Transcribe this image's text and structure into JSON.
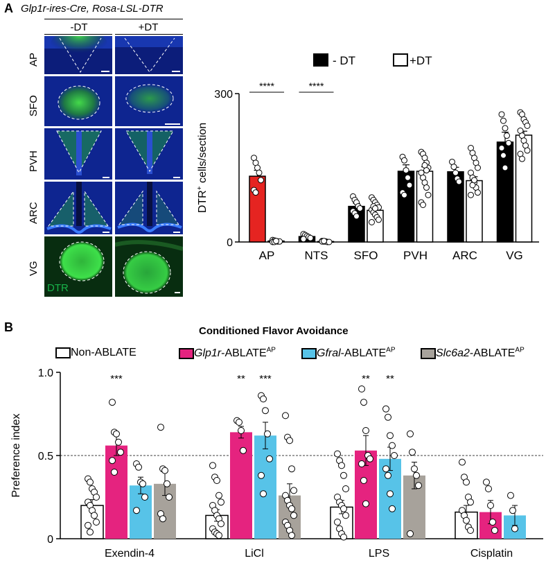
{
  "panelA": {
    "letter": "A",
    "genotype": "Glp1r-ires-Cre, Rosa-LSL-DTR",
    "columns": [
      "-DT",
      "+DT"
    ],
    "rows": [
      "AP",
      "SFO",
      "PVH",
      "ARC",
      "VG"
    ],
    "stain_label": "DTR"
  },
  "panelB": {
    "letter": "B",
    "title": "Conditioned Flavor Avoidance"
  },
  "chart_data": [
    {
      "type": "bar",
      "title": "",
      "xlabel": "",
      "ylabel": "DTR+ cells/section",
      "ylabel_main": "DTR",
      "ylabel_sup": "+",
      "ylabel_rest": " cells/section",
      "ylim": [
        0,
        300
      ],
      "yticks": [
        "0",
        "300"
      ],
      "categories": [
        "AP",
        "NTS",
        "SFO",
        "PVH",
        "ARC",
        "VG"
      ],
      "legend": [
        "- DT",
        "+DT"
      ],
      "series": [
        {
          "name": "- DT",
          "values": [
            133,
            11,
            72,
            143,
            142,
            202
          ],
          "errors": [
            12,
            3,
            6,
            13,
            9,
            20
          ],
          "color": "#000000",
          "ap_color": "#e52421",
          "points": [
            [
              170,
              160,
              150,
              140,
              125,
              105,
              100
            ],
            [
              16,
              14,
              12,
              10,
              8,
              6
            ],
            [
              92,
              85,
              80,
              72,
              68,
              62,
              58,
              52
            ],
            [
              172,
              165,
              145,
              130,
              115,
              100,
              95
            ],
            [
              162,
              152,
              140,
              128,
              122
            ],
            [
              258,
              245,
              230,
              215,
              200,
              190,
              175,
              150
            ]
          ]
        },
        {
          "name": "+DT",
          "values": [
            2,
            1,
            64,
            143,
            124,
            216
          ],
          "errors": [
            1,
            0.5,
            4,
            9,
            8,
            8
          ],
          "color": "#ffffff",
          "points": [
            [
              4,
              3,
              2,
              1,
              1,
              0,
              0,
              2
            ],
            [
              2,
              1,
              1,
              0,
              0,
              1,
              2
            ],
            [
              90,
              85,
              80,
              75,
              70,
              65,
              60,
              55,
              50,
              45,
              40,
              72,
              68
            ],
            [
              182,
              178,
              170,
              160,
              150,
              140,
              130,
              120,
              110,
              95,
              80,
              75,
              155,
              145
            ],
            [
              190,
              180,
              170,
              160,
              150,
              140,
              130,
              120,
              110,
              100,
              95,
              115,
              125
            ],
            [
              262,
              258,
              248,
              242,
              235,
              225,
              215,
              205,
              195,
              185,
              178,
              168
            ]
          ]
        }
      ],
      "annotations": [
        {
          "category": "AP",
          "text": "****"
        },
        {
          "category": "NTS",
          "text": "****"
        }
      ]
    },
    {
      "type": "bar",
      "title": "Conditioned Flavor Avoidance",
      "xlabel": "",
      "ylabel": "Preference index",
      "ylim": [
        0,
        1.0
      ],
      "yticks": [
        "0",
        "0.5",
        "1.0"
      ],
      "reference_line": 0.5,
      "categories": [
        "Exendin-4",
        "LiCl",
        "LPS",
        "Cisplatin"
      ],
      "legend": [
        {
          "italic": "",
          "text": "Non-ABLATE",
          "sup": ""
        },
        {
          "italic": "Glp1r",
          "text": "-ABLATE",
          "sup": "AP"
        },
        {
          "italic": "Gfral",
          "text": "-ABLATE",
          "sup": "AP"
        },
        {
          "italic": "Slc6a2",
          "text": "-ABLATE",
          "sup": "AP"
        }
      ],
      "series": [
        {
          "name": "Non-ABLATE",
          "color": "#ffffff",
          "values": [
            0.2,
            0.14,
            0.19,
            0.16
          ],
          "errors": [
            0.035,
            0.035,
            0.04,
            0.04
          ],
          "points": [
            [
              0.36,
              0.34,
              0.3,
              0.28,
              0.25,
              0.22,
              0.2,
              0.17,
              0.14,
              0.1,
              0.08,
              0.04
            ],
            [
              0.44,
              0.37,
              0.35,
              0.26,
              0.22,
              0.2,
              0.17,
              0.14,
              0.12,
              0.09,
              0.06,
              0.04,
              0.03,
              0.02
            ],
            [
              0.51,
              0.47,
              0.44,
              0.38,
              0.3,
              0.25,
              0.22,
              0.2,
              0.18,
              0.14,
              0.1,
              0.06,
              0.03,
              0.01
            ],
            [
              0.46,
              0.37,
              0.34,
              0.25,
              0.22,
              0.17,
              0.14,
              0.11,
              0.07,
              0.05
            ]
          ]
        },
        {
          "name": "Glp1r-ABLATE AP",
          "color": "#e5237f",
          "values": [
            0.56,
            0.64,
            0.53,
            0.16
          ],
          "errors": [
            0.06,
            0.035,
            0.09,
            0.07
          ],
          "points": [
            [
              0.82,
              0.64,
              0.63,
              0.58,
              0.52,
              0.47,
              0.4
            ],
            [
              0.71,
              0.7,
              0.65,
              0.53
            ],
            [
              0.9,
              0.82,
              0.65,
              0.5,
              0.48,
              0.45,
              0.35,
              0.21
            ],
            [
              0.34,
              0.3,
              0.2,
              0.1,
              0.05
            ]
          ]
        },
        {
          "name": "Gfral-ABLATE AP",
          "color": "#57c3e8",
          "values": [
            0.32,
            0.62,
            0.48,
            0.14
          ],
          "errors": [
            0.05,
            0.08,
            0.07,
            0.06
          ],
          "points": [
            [
              0.45,
              0.43,
              0.34,
              0.33,
              0.25,
              0.17
            ],
            [
              0.86,
              0.84,
              0.77,
              0.63,
              0.48,
              0.38,
              0.27
            ],
            [
              0.78,
              0.73,
              0.62,
              0.56,
              0.5,
              0.42,
              0.38,
              0.27,
              0.18
            ],
            [
              0.26,
              0.17,
              0.06
            ]
          ]
        },
        {
          "name": "Slc6a2-ABLATE AP",
          "color": "#a7a29b",
          "values": [
            0.33,
            0.26,
            0.38,
            null
          ],
          "errors": [
            0.07,
            0.07,
            0.08,
            null
          ],
          "points": [
            [
              0.67,
              0.42,
              0.41,
              0.33,
              0.25,
              0.15,
              0.12
            ],
            [
              0.74,
              0.61,
              0.59,
              0.42,
              0.29,
              0.26,
              0.23,
              0.2,
              0.18,
              0.14,
              0.1,
              0.08,
              0.05,
              0.02
            ],
            [
              0.63,
              0.52,
              0.42,
              0.38,
              0.32,
              0.03
            ],
            []
          ]
        }
      ],
      "annotations": [
        {
          "category": "Exendin-4",
          "series": 1,
          "text": "***"
        },
        {
          "category": "LiCl",
          "series": 1,
          "text": "**"
        },
        {
          "category": "LiCl",
          "series": 2,
          "text": "***"
        },
        {
          "category": "LPS",
          "series": 1,
          "text": "**"
        },
        {
          "category": "LPS",
          "series": 2,
          "text": "**"
        }
      ]
    }
  ]
}
